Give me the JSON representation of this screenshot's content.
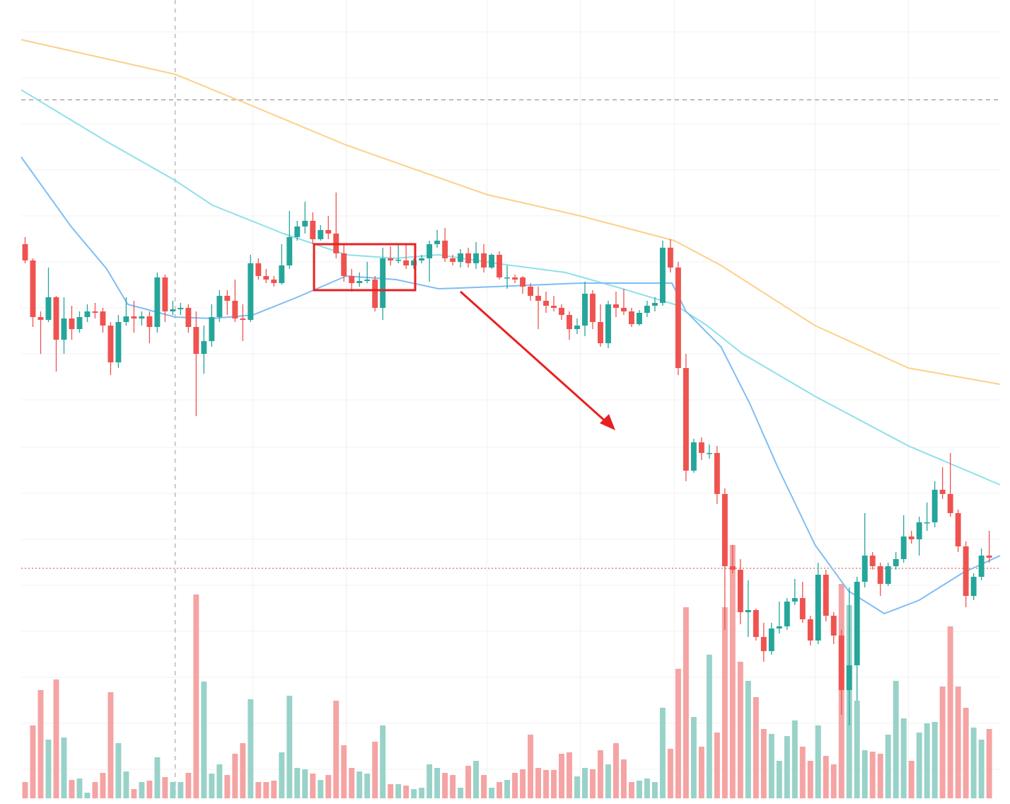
{
  "chart_data": {
    "type": "candlestick",
    "xlim": [
      -0.5,
      125.4
    ],
    "ylim": [
      0,
      1136
    ],
    "volume_ylim": [
      0,
      1128
    ],
    "xticks": [
      29.3,
      41.3,
      59.4,
      71.4,
      83.5,
      101.6,
      113.6
    ],
    "yticks": [
      49,
      114,
      179,
      244,
      309,
      374,
      439,
      504,
      571,
      636,
      701,
      766,
      831,
      896,
      961,
      1026,
      1091
    ],
    "grid": true,
    "up_color": "#26a69a",
    "down_color": "#ef5350",
    "volume_up_color": "#98d2c8",
    "volume_down_color": "#f5a3a3",
    "open": [
      791,
      768,
      688,
      684,
      716,
      656,
      686,
      671,
      688,
      696,
      696,
      676,
      624,
      681,
      689,
      686,
      689,
      674,
      744,
      696,
      699,
      701,
      674,
      636,
      654,
      688,
      718,
      711,
      686,
      684,
      764,
      746,
      741,
      736,
      761,
      801,
      816,
      824,
      798,
      811,
      806,
      778,
      746,
      736,
      739,
      741,
      701,
      771,
      768,
      768,
      761,
      768,
      771,
      791,
      796,
      771,
      766,
      778,
      764,
      778,
      758,
      776,
      744,
      744,
      744,
      731,
      718,
      711,
      704,
      701,
      691,
      671,
      676,
      721,
      681,
      651,
      706,
      701,
      696,
      678,
      694,
      704,
      708,
      786,
      758,
      616,
      471,
      511,
      496,
      496,
      438,
      336,
      331,
      271,
      274,
      236,
      216,
      248,
      251,
      286,
      291,
      261,
      231,
      324,
      266,
      238,
      161,
      196,
      314,
      351,
      336,
      311,
      336,
      346,
      378,
      374,
      398,
      398,
      444,
      438,
      411,
      364,
      294,
      321,
      351
    ],
    "close": [
      768,
      688,
      684,
      716,
      656,
      686,
      671,
      688,
      696,
      694,
      676,
      624,
      681,
      689,
      686,
      689,
      674,
      744,
      696,
      699,
      701,
      674,
      636,
      654,
      688,
      718,
      711,
      686,
      684,
      764,
      746,
      741,
      736,
      761,
      801,
      816,
      824,
      798,
      811,
      806,
      778,
      746,
      736,
      739,
      741,
      701,
      771,
      768,
      769,
      761,
      768,
      771,
      791,
      796,
      771,
      766,
      778,
      764,
      778,
      758,
      776,
      744,
      744,
      741,
      731,
      718,
      711,
      704,
      701,
      691,
      671,
      676,
      721,
      681,
      651,
      706,
      701,
      696,
      678,
      694,
      704,
      708,
      786,
      758,
      616,
      471,
      511,
      496,
      496,
      438,
      336,
      331,
      271,
      274,
      236,
      216,
      248,
      251,
      286,
      291,
      261,
      231,
      324,
      266,
      238,
      161,
      196,
      314,
      351,
      336,
      311,
      336,
      346,
      378,
      374,
      398,
      398,
      444,
      438,
      411,
      364,
      294,
      321,
      351,
      348
    ],
    "high": [
      801,
      771,
      696,
      758,
      718,
      716,
      704,
      696,
      706,
      708,
      701,
      681,
      691,
      716,
      711,
      696,
      696,
      751,
      748,
      711,
      708,
      706,
      696,
      676,
      706,
      726,
      726,
      741,
      706,
      776,
      771,
      756,
      746,
      791,
      838,
      824,
      851,
      836,
      818,
      831,
      864,
      791,
      756,
      751,
      766,
      746,
      786,
      788,
      791,
      791,
      771,
      776,
      796,
      811,
      814,
      776,
      784,
      786,
      794,
      791,
      778,
      781,
      761,
      748,
      746,
      736,
      731,
      724,
      718,
      706,
      696,
      686,
      738,
      726,
      706,
      711,
      724,
      728,
      701,
      698,
      711,
      716,
      796,
      798,
      766,
      636,
      516,
      518,
      508,
      506,
      446,
      366,
      346,
      316,
      276,
      256,
      256,
      286,
      291,
      318,
      314,
      266,
      341,
      331,
      271,
      246,
      306,
      321,
      411,
      356,
      341,
      341,
      356,
      408,
      386,
      406,
      426,
      456,
      476,
      496,
      416,
      371,
      326,
      361,
      386
    ],
    "low": [
      764,
      674,
      636,
      681,
      611,
      636,
      656,
      666,
      681,
      686,
      666,
      606,
      616,
      676,
      666,
      676,
      651,
      666,
      681,
      691,
      691,
      666,
      548,
      608,
      646,
      681,
      691,
      681,
      654,
      681,
      741,
      736,
      731,
      734,
      756,
      796,
      806,
      791,
      796,
      798,
      771,
      738,
      724,
      731,
      736,
      696,
      684,
      761,
      764,
      756,
      756,
      764,
      738,
      786,
      766,
      761,
      758,
      758,
      756,
      751,
      756,
      741,
      728,
      736,
      721,
      711,
      671,
      694,
      696,
      684,
      656,
      664,
      661,
      671,
      646,
      644,
      688,
      691,
      674,
      676,
      688,
      696,
      704,
      751,
      606,
      456,
      468,
      486,
      488,
      424,
      246,
      326,
      254,
      236,
      231,
      201,
      211,
      241,
      246,
      281,
      256,
      224,
      226,
      258,
      226,
      126,
      111,
      146,
      306,
      331,
      294,
      308,
      331,
      341,
      368,
      351,
      386,
      391,
      431,
      406,
      356,
      278,
      288,
      316,
      341
    ],
    "volume": [
      23,
      103,
      153,
      83,
      168,
      86,
      26,
      28,
      8,
      23,
      36,
      150,
      78,
      38,
      13,
      23,
      25,
      58,
      30,
      23,
      23,
      36,
      288,
      165,
      35,
      48,
      33,
      63,
      78,
      140,
      23,
      23,
      25,
      65,
      145,
      43,
      41,
      35,
      26,
      33,
      138,
      75,
      43,
      38,
      35,
      80,
      103,
      20,
      20,
      18,
      13,
      15,
      48,
      43,
      36,
      33,
      15,
      46,
      53,
      33,
      15,
      23,
      26,
      36,
      41,
      90,
      43,
      40,
      40,
      63,
      65,
      31,
      43,
      41,
      68,
      48,
      78,
      55,
      23,
      25,
      28,
      23,
      128,
      70,
      183,
      270,
      115,
      73,
      203,
      93,
      270,
      358,
      193,
      166,
      143,
      98,
      91,
      53,
      88,
      110,
      73,
      53,
      103,
      60,
      48,
      303,
      273,
      138,
      68,
      66,
      63,
      90,
      166,
      113,
      53,
      93,
      106,
      108,
      158,
      243,
      158,
      128,
      100,
      83,
      98
    ],
    "moving_averages": [
      {
        "color": "#fdd08a",
        "x": [
          -0.5,
          19.3,
          29.3,
          41.3,
          59.4,
          71.4,
          83.5,
          89.5,
          101.6,
          113.6,
          125.4
        ],
        "values": [
          1080,
          1031,
          986,
          931,
          861,
          831,
          796,
          761,
          676,
          616,
          593
        ]
      },
      {
        "color": "#8fe0ea",
        "x": [
          -0.5,
          10.5,
          19.3,
          24.1,
          33.2,
          41.3,
          47.7,
          53.2,
          60.5,
          69.5,
          75.9,
          83.5,
          87.7,
          92.3,
          101.6,
          113.6,
          125.4
        ],
        "values": [
          1009,
          936,
          881,
          846,
          806,
          776,
          771,
          776,
          764,
          751,
          731,
          706,
          676,
          636,
          576,
          506,
          451
        ]
      },
      {
        "color": "#7fbdf5",
        "x": [
          -0.5,
          5.9,
          10.5,
          13.2,
          19.3,
          24.1,
          29.3,
          35,
          41.3,
          47.7,
          53.2,
          60.5,
          71.4,
          83.2,
          85,
          89.5,
          93.2,
          96.8,
          101.6,
          105.9,
          110.5,
          115,
          120.5,
          125.4
        ],
        "values": [
          914,
          816,
          756,
          706,
          688,
          686,
          691,
          716,
          746,
          741,
          728,
          731,
          736,
          736,
          696,
          646,
          566,
          476,
          366,
          301,
          269,
          288,
          326,
          351
        ]
      }
    ],
    "price_lines": [
      {
        "value": 995,
        "color": "#bdbdbd",
        "style": "dashed"
      },
      {
        "value": 333,
        "color": "#e08080",
        "style": "dotted"
      }
    ],
    "crosshair_x": 19.3
  }
}
